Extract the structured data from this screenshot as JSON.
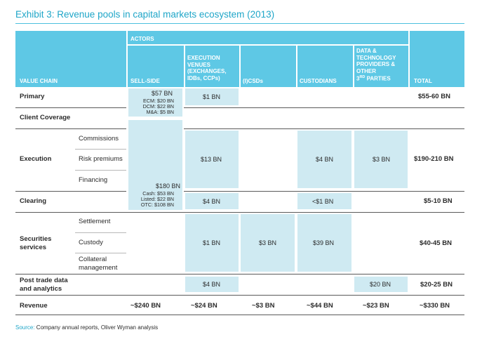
{
  "title": "Exhibit 3: Revenue pools in capital markets ecosystem (2013)",
  "header": {
    "actors": "ACTORS",
    "value_chain": "VALUE CHAIN",
    "sell_side": "SELL-SIDE",
    "exec_venues_1": "EXECUTION",
    "exec_venues_2": "VENUES",
    "exec_venues_3": "(EXCHANGES,",
    "exec_venues_4": "IDBs, CCPs)",
    "icsds": "(I)CSDs",
    "custodians": "CUSTODIANS",
    "data_1": "DATA &",
    "data_2": "TECHNOLOGY",
    "data_3": "PROVIDERS &",
    "data_4": "OTHER",
    "data_5a": "3",
    "data_5b": "RD",
    "data_5c": " PARTIES",
    "total": "TOTAL"
  },
  "rows": {
    "primary": "Primary",
    "client_coverage": "Client Coverage",
    "execution": "Execution",
    "commissions": "Commissions",
    "risk_premiums": "Risk premiums",
    "financing": "Financing",
    "clearing": "Clearing",
    "securities_1": "Securities",
    "securities_2": "services",
    "settlement": "Settlement",
    "custody": "Custody",
    "collateral_1": "Collateral",
    "collateral_2": "management",
    "post_trade_1": "Post trade data",
    "post_trade_2": "and analytics",
    "revenue": "Revenue"
  },
  "cells": {
    "primary_sell": "$57 BN",
    "primary_ecm": "ECM:  $20 BN",
    "primary_dcm": "DCM: $22 BN",
    "primary_ma": "M&A:   $5 BN",
    "primary_exec": "$1 BN",
    "sell_big": "$180 BN",
    "sell_cash": "Cash:  $53 BN",
    "sell_listed": "Listed: $22 BN",
    "sell_otc": "OTC: $108 BN",
    "execution_exec": "$13 BN",
    "execution_cust": "$4 BN",
    "execution_data": "$3 BN",
    "clearing_exec": "$4 BN",
    "clearing_cust": "<$1 BN",
    "securities_exec": "$1 BN",
    "securities_csd": "$3 BN",
    "securities_cust": "$39 BN",
    "post_exec": "$4 BN",
    "post_data": "$20 BN"
  },
  "totals": {
    "primary": "$55-60 BN",
    "execution": "$190-210 BN",
    "clearing": "$5-10 BN",
    "securities": "$40-45 BN",
    "post": "$20-25 BN"
  },
  "revenue": {
    "sell": "~$240 BN",
    "exec": "~$24 BN",
    "csd": "~$3 BN",
    "cust": "~$44 BN",
    "data": "~$23 BN",
    "total": "~$330 BN"
  },
  "source": {
    "label": "Source:",
    "text": " Company annual reports, Oliver Wyman analysis"
  }
}
